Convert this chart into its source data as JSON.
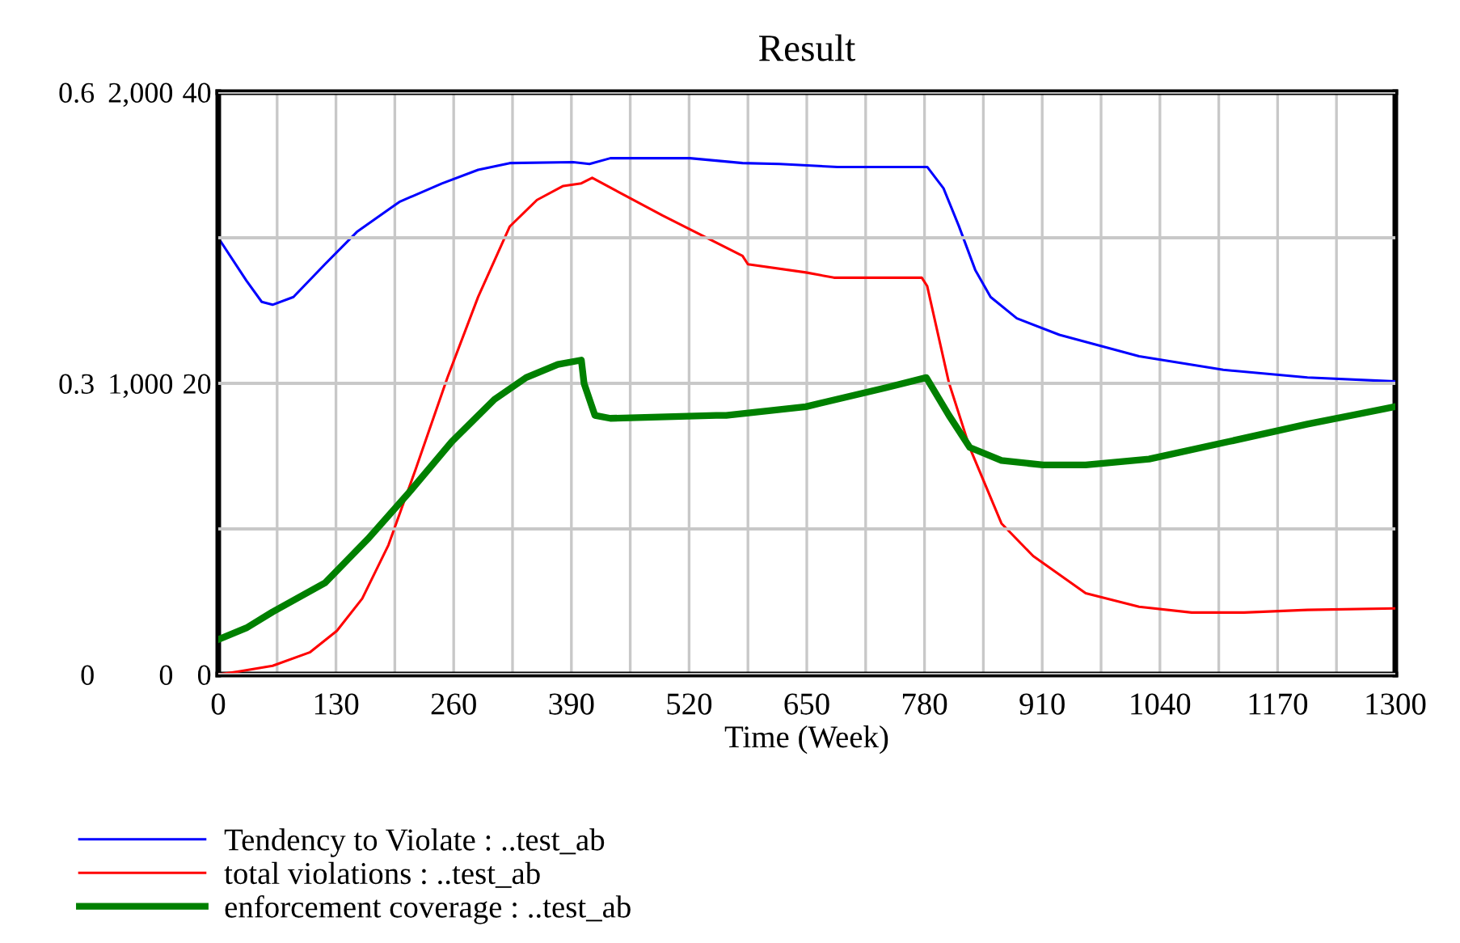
{
  "chart_data": {
    "type": "line",
    "title": "Result",
    "xlabel": "Time (Week)",
    "x": [
      0,
      31,
      48,
      60,
      83,
      118,
      153,
      200,
      247,
      287,
      322,
      392,
      410,
      433,
      521,
      579,
      620,
      684,
      783,
      801,
      818,
      836,
      853,
      882,
      929,
      1017,
      1110,
      1203,
      1300
    ],
    "xlim": [
      0,
      1300
    ],
    "xticks": [
      0,
      {
        "value": 65,
        "label": null
      },
      130,
      {
        "value": 195,
        "label": null
      },
      260,
      {
        "value": 325,
        "label": null
      },
      390,
      {
        "value": 455,
        "label": null
      },
      520,
      {
        "value": 585,
        "label": null
      },
      650,
      {
        "value": 715,
        "label": null
      },
      780,
      {
        "value": 845,
        "label": null
      },
      910,
      {
        "value": 975,
        "label": null
      },
      1040,
      {
        "value": 1105,
        "label": null
      },
      1170,
      {
        "value": 1235,
        "label": null
      },
      1300
    ],
    "ylim": [
      0,
      0.6
    ],
    "yticks": [
      0,
      {
        "value": 0.15,
        "label": null
      },
      0.3,
      {
        "value": 0.45,
        "label": null
      },
      0.6
    ],
    "y2lim": [
      0,
      2000
    ],
    "y2ticks": [
      0,
      {
        "value": 500,
        "label": null
      },
      {
        "value": 1000,
        "label": "1,000"
      },
      {
        "value": 1500,
        "label": null
      },
      {
        "value": 2000,
        "label": "2,000"
      }
    ],
    "y3lim": [
      0,
      40
    ],
    "y3ticks": [
      0,
      {
        "value": 10,
        "label": null
      },
      20,
      {
        "value": 30,
        "label": null
      },
      40
    ],
    "grid": true,
    "legend": "bottom",
    "series": [
      {
        "name": "Tendency to Violate : ..test_ab",
        "color": "#0000ff",
        "values": [
          0.45,
          0.406,
          0.384,
          0.381,
          0.389,
          0.423,
          0.456,
          0.487,
          0.506,
          0.52,
          0.527,
          0.528,
          0.526,
          0.532,
          0.532,
          0.527,
          0.526,
          0.523,
          0.523,
          0.501,
          0.462,
          0.417,
          0.389,
          0.367,
          0.35,
          0.328,
          0.314,
          0.306,
          0.302
        ]
      },
      {
        "name": "total violations : ..test_ab",
        "color": "#ff0000",
        "axis": "y2",
        "x": [
          0,
          24,
          60,
          101,
          131,
          159,
          188,
          218,
          253,
          287,
          322,
          352,
          381,
          401,
          413,
          491,
          579,
          585,
          649,
          680,
          777,
          783,
          807,
          830,
          865,
          900,
          958,
          1017,
          1075,
          1133,
          1203,
          1300
        ],
        "values": [
          0,
          11,
          30,
          76,
          150,
          261,
          445,
          705,
          1019,
          1297,
          1539,
          1630,
          1678,
          1687,
          1706,
          1576,
          1438,
          1409,
          1381,
          1363,
          1363,
          1334,
          1002,
          779,
          519,
          407,
          279,
          233,
          213,
          213,
          222,
          227
        ]
      },
      {
        "name": "enforcement coverage : ..test_ab",
        "color": "#008000",
        "axis": "y3",
        "x": [
          0,
          31,
          60,
          118,
          165,
          212,
          258,
          305,
          340,
          375,
          401,
          404,
          416,
          433,
          550,
          561,
          649,
          737,
          782,
          807,
          830,
          865,
          911,
          958,
          1028,
          1116,
          1203,
          1300
        ],
        "values": [
          2.4,
          3.2,
          4.3,
          6.3,
          9.3,
          12.6,
          16.0,
          18.9,
          20.4,
          21.3,
          21.6,
          20.0,
          17.8,
          17.6,
          17.8,
          17.8,
          18.4,
          19.7,
          20.4,
          17.8,
          15.6,
          14.7,
          14.4,
          14.4,
          14.8,
          16.0,
          17.2,
          18.4
        ]
      }
    ]
  }
}
